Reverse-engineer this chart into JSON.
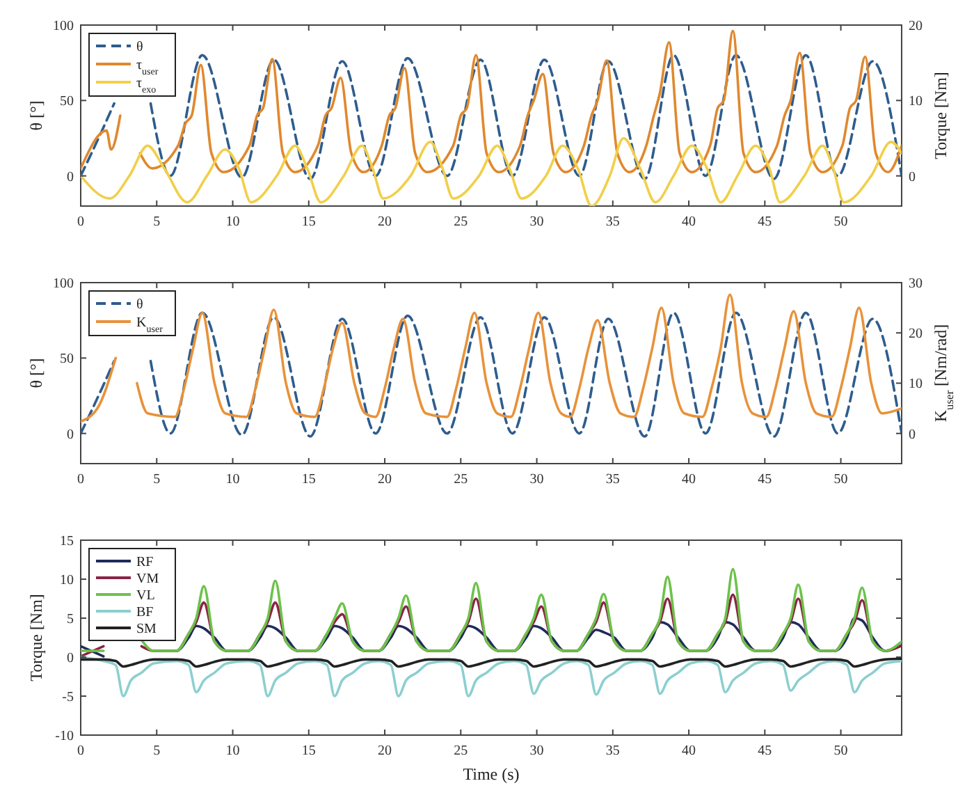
{
  "chart_data": [
    {
      "type": "line",
      "ylabel": "θ [°]",
      "y2label": "Torque [Nm]",
      "xlim": [
        0,
        54
      ],
      "xticks": [
        0,
        5,
        10,
        15,
        20,
        25,
        30,
        35,
        40,
        45,
        50
      ],
      "ylim": [
        -20,
        100
      ],
      "yticks": [
        0,
        50,
        100
      ],
      "y2lim": [
        -4,
        20
      ],
      "y2ticks": [
        0,
        10,
        20
      ],
      "legend": "top left",
      "series": [
        {
          "name": "θ",
          "color": "#2e5d8e",
          "line_style": "dashed",
          "x": [
            0,
            1.4,
            2.2,
            3.5,
            4.6,
            5.9,
            8.0,
            10.6,
            12.7,
            15.1,
            17.2,
            19.4,
            21.5,
            24.1,
            26.3,
            28.4,
            30.5,
            32.8,
            34.7,
            37.1,
            39.0,
            41.1,
            43.1,
            45.6,
            47.7,
            49.8,
            52.1,
            54
          ],
          "values": [
            0,
            30,
            48,
            null,
            48,
            0,
            80,
            -1,
            77,
            -2,
            76,
            0,
            78,
            0,
            77,
            0,
            77,
            0,
            76,
            -2,
            80,
            0,
            80,
            -2,
            80,
            0,
            76,
            0
          ]
        },
        {
          "name": "τ$_{user}$",
          "color": "#e0882e",
          "axis": "y2",
          "x": [
            0,
            1.7,
            2.0,
            2.6,
            3.2,
            3.9,
            4.7,
            6.4,
            6.9,
            7.3,
            7.9,
            8.6,
            9.4,
            11.1,
            11.6,
            12.0,
            12.6,
            13.3,
            14.1,
            15.6,
            16.1,
            16.5,
            17.1,
            17.8,
            18.6,
            19.8,
            20.3,
            20.7,
            21.3,
            22.0,
            22.8,
            24.5,
            25.0,
            25.4,
            26.0,
            26.7,
            27.5,
            28.9,
            29.4,
            29.8,
            30.4,
            31.1,
            31.9,
            33.1,
            33.6,
            34.0,
            34.6,
            35.3,
            36.1,
            37.2,
            37.7,
            38.1,
            38.7,
            39.4,
            40.2,
            41.4,
            41.9,
            42.3,
            42.9,
            43.6,
            44.4,
            45.8,
            46.3,
            46.7,
            47.3,
            48.0,
            48.8,
            50.1,
            50.6,
            51.0,
            51.6,
            52.3,
            53.1,
            54
          ],
          "values": [
            1,
            6,
            3.5,
            8,
            null,
            3,
            1,
            4,
            7,
            8,
            14.7,
            3,
            0.5,
            4,
            8,
            9,
            15.5,
            3,
            0.5,
            4,
            8,
            9,
            13,
            3,
            0.5,
            4,
            8,
            9,
            14.3,
            3,
            0.5,
            4,
            8,
            9,
            16,
            3,
            0.5,
            4,
            8,
            10,
            13.5,
            3,
            0.5,
            4,
            8,
            10,
            15.3,
            3,
            0.5,
            4,
            8,
            11,
            17.7,
            3,
            0.5,
            4,
            9,
            10,
            19.2,
            3,
            0.5,
            4,
            8,
            10,
            16.3,
            3,
            0.5,
            4,
            9,
            10,
            15.8,
            3,
            0.5,
            4
          ]
        },
        {
          "name": "τ$_{exo}$",
          "color": "#f2cf4a",
          "axis": "y2",
          "x": [
            0,
            1.9,
            3.2,
            4.4,
            5.5,
            7.0,
            8.3,
            9.5,
            10.4,
            11.2,
            12.9,
            14.1,
            14.9,
            15.8,
            17.3,
            18.5,
            19.2,
            19.9,
            21.7,
            23.0,
            23.8,
            24.5,
            26.2,
            27.4,
            28.2,
            29.0,
            30.6,
            31.7,
            32.7,
            33.6,
            34.8,
            35.7,
            36.8,
            37.8,
            39.0,
            40.2,
            41.2,
            42.1,
            43.2,
            44.4,
            45.3,
            46.0,
            47.6,
            48.8,
            49.5,
            50.2,
            52.0,
            53.3,
            54
          ],
          "values": [
            0,
            -3,
            0,
            4,
            1,
            -3.5,
            0,
            3.5,
            1,
            -3.5,
            0,
            4,
            1,
            -3.5,
            0,
            4,
            1,
            -3,
            0,
            4.5,
            1,
            -3,
            0,
            4,
            1,
            -3,
            0,
            4,
            1,
            -4,
            0,
            5,
            1,
            -3.5,
            0,
            4,
            1,
            -3.5,
            0,
            4,
            1,
            -3.5,
            0,
            4,
            1,
            -3.5,
            0,
            4.5,
            3
          ]
        }
      ]
    },
    {
      "type": "line",
      "ylabel": "θ [°]",
      "y2label": "K$_{user}$ [Nm/rad]",
      "xlim": [
        0,
        54
      ],
      "xticks": [
        0,
        5,
        10,
        15,
        20,
        25,
        30,
        35,
        40,
        45,
        50
      ],
      "ylim": [
        -20,
        100
      ],
      "yticks": [
        0,
        50,
        100
      ],
      "y2lim": [
        -6,
        30
      ],
      "y2ticks": [
        0,
        10,
        20,
        30
      ],
      "legend": "top left",
      "series": [
        {
          "name": "θ",
          "color": "#2e5d8e",
          "line_style": "dashed",
          "x": [
            0,
            1.4,
            2.2,
            3.5,
            4.6,
            5.9,
            8.0,
            10.6,
            12.7,
            15.1,
            17.2,
            19.4,
            21.5,
            24.1,
            26.3,
            28.4,
            30.5,
            32.8,
            34.7,
            37.1,
            39.0,
            41.1,
            43.1,
            45.6,
            47.7,
            49.8,
            52.1,
            54
          ],
          "values": [
            0,
            30,
            48,
            null,
            48,
            0,
            80,
            -1,
            77,
            -2,
            76,
            0,
            78,
            0,
            77,
            0,
            77,
            0,
            76,
            -2,
            80,
            0,
            80,
            -2,
            80,
            0,
            76,
            0
          ]
        },
        {
          "name": "K$_{user}$",
          "color": "#e8923a",
          "axis": "y2",
          "x": [
            0,
            1.1,
            2.3,
            2.9,
            3.7,
            4.4,
            6.2,
            6.8,
            7.4,
            8.0,
            8.8,
            9.5,
            10.9,
            11.5,
            12.1,
            12.7,
            13.5,
            14.2,
            15.4,
            16.0,
            16.6,
            17.2,
            18.0,
            18.7,
            19.4,
            20.0,
            20.6,
            21.2,
            22.0,
            22.7,
            24.1,
            24.7,
            25.3,
            25.9,
            26.7,
            27.4,
            28.3,
            28.9,
            29.5,
            30.1,
            30.9,
            31.6,
            32.2,
            32.8,
            33.4,
            34.0,
            34.8,
            35.5,
            36.4,
            37.0,
            37.6,
            38.2,
            39.0,
            39.7,
            40.9,
            41.5,
            42.1,
            42.7,
            43.5,
            44.2,
            45.1,
            45.7,
            46.3,
            46.9,
            47.7,
            48.4,
            49.4,
            50.0,
            50.6,
            51.2,
            52.0,
            52.7,
            54
          ],
          "values": [
            2.4,
            5,
            15,
            null,
            10,
            4,
            3.3,
            9,
            17,
            24,
            10,
            4,
            3.3,
            9,
            17,
            24.6,
            10,
            4,
            3.3,
            9,
            17,
            22,
            10,
            4,
            3.3,
            9,
            17,
            22.8,
            10,
            4,
            3.3,
            9,
            17,
            24,
            10,
            4,
            3.3,
            9,
            17,
            24,
            10,
            4,
            3.3,
            9,
            17,
            22.5,
            10,
            4,
            3.3,
            9,
            17,
            25,
            10,
            4,
            3.3,
            9,
            17,
            27.6,
            10,
            4,
            3.3,
            9,
            17,
            24.3,
            10,
            4,
            3.3,
            9,
            17,
            25,
            10,
            4,
            5
          ]
        }
      ]
    },
    {
      "type": "line",
      "xlabel": "Time (s)",
      "ylabel": "Torque [Nm]",
      "xlim": [
        0,
        54
      ],
      "xticks": [
        0,
        5,
        10,
        15,
        20,
        25,
        30,
        35,
        40,
        45,
        50
      ],
      "ylim": [
        -10,
        15
      ],
      "yticks": [
        -10,
        -5,
        0,
        5,
        10,
        15
      ],
      "legend": "top left",
      "x": [
        0,
        1.5,
        2.3,
        2.8,
        3.3,
        4.0,
        4.8,
        6.3,
        7.1,
        7.6,
        8.1,
        8.8,
        9.6,
        11.0,
        11.8,
        12.3,
        12.8,
        13.5,
        14.3,
        15.4,
        16.2,
        16.7,
        17.2,
        17.9,
        18.7,
        19.6,
        20.4,
        20.9,
        21.4,
        22.1,
        22.9,
        24.2,
        25.0,
        25.5,
        26.0,
        26.7,
        27.5,
        28.5,
        29.3,
        29.8,
        30.3,
        31.0,
        31.8,
        32.6,
        33.4,
        33.9,
        34.4,
        35.1,
        35.9,
        36.8,
        37.6,
        38.1,
        38.6,
        39.3,
        40.1,
        41.1,
        41.9,
        42.4,
        42.9,
        43.6,
        44.4,
        45.4,
        46.2,
        46.7,
        47.2,
        47.9,
        48.7,
        49.6,
        50.4,
        50.9,
        51.4,
        52.1,
        52.9,
        54
      ],
      "series": [
        {
          "name": "RF",
          "color": "#1f2a5c",
          "values": [
            1.4,
            0.1,
            null,
            null,
            null,
            null,
            0.8,
            0.8,
            2.5,
            4,
            3.7,
            2.5,
            0.8,
            0.8,
            2.5,
            4,
            3.7,
            2.5,
            0.8,
            0.8,
            2.5,
            4,
            3.7,
            2.5,
            0.8,
            0.8,
            2.5,
            4,
            3.7,
            2.5,
            0.8,
            0.8,
            2.5,
            4,
            3.7,
            2.5,
            0.8,
            0.8,
            2.5,
            4,
            3.7,
            2.5,
            0.8,
            0.8,
            2.5,
            3.5,
            3.2,
            2.5,
            0.8,
            0.8,
            2.5,
            4.5,
            4.2,
            2.5,
            0.8,
            0.8,
            2.5,
            4.5,
            4.2,
            2.5,
            0.8,
            0.8,
            2.5,
            4.5,
            4.2,
            2.5,
            0.8,
            0.8,
            2.5,
            5,
            4.7,
            2.5,
            0.8,
            1.5
          ]
        },
        {
          "name": "VM",
          "color": "#8b2445",
          "values": [
            0.1,
            1.4,
            null,
            null,
            null,
            1.4,
            0.8,
            0.8,
            3,
            4.5,
            7,
            2,
            0.8,
            0.8,
            3,
            4.5,
            7,
            2,
            0.8,
            0.8,
            3,
            4.5,
            5.5,
            2,
            0.8,
            0.8,
            3,
            4.5,
            6.5,
            2,
            0.8,
            0.8,
            3,
            4.5,
            7.5,
            2,
            0.8,
            0.8,
            3,
            4.5,
            6.5,
            2,
            0.8,
            0.8,
            3,
            4.5,
            7,
            2,
            0.8,
            0.8,
            3,
            4.5,
            7.5,
            2,
            0.8,
            0.8,
            3,
            4.5,
            8,
            2,
            0.8,
            0.8,
            3,
            4.5,
            7.5,
            2,
            0.8,
            0.8,
            3,
            4.5,
            7.3,
            2,
            0.8,
            1.5
          ]
        },
        {
          "name": "VL",
          "color": "#6cc24a",
          "values": [
            0.8,
            0.8,
            null,
            null,
            null,
            2.2,
            0.8,
            0.8,
            3,
            5,
            9.1,
            2,
            0.8,
            0.8,
            3,
            5,
            9.8,
            2,
            0.8,
            0.8,
            3,
            5,
            6.9,
            2,
            0.8,
            0.8,
            3,
            5,
            7.9,
            2,
            0.8,
            0.8,
            3,
            5,
            9.5,
            2,
            0.8,
            0.8,
            3,
            5,
            8,
            2,
            0.8,
            0.8,
            3,
            5,
            8.1,
            2,
            0.8,
            0.8,
            3,
            5,
            10.3,
            2,
            0.8,
            0.8,
            3,
            5,
            11.3,
            2,
            0.8,
            0.8,
            3,
            5,
            9.3,
            2,
            0.8,
            0.8,
            3,
            5,
            8.9,
            2,
            0.8,
            2
          ]
        },
        {
          "name": "BF",
          "color": "#8ccfd0",
          "values": [
            0,
            -0.5,
            -1,
            -5,
            -3,
            -2,
            -0.8,
            -0.5,
            -1,
            -4.5,
            -3,
            -2,
            -0.8,
            -0.5,
            -1,
            -5,
            -3,
            -2,
            -0.8,
            -0.5,
            -1,
            -5,
            -3,
            -2,
            -0.8,
            -0.5,
            -1,
            -5,
            -3,
            -2,
            -0.8,
            -0.5,
            -1,
            -5,
            -3,
            -2,
            -0.8,
            -0.5,
            -1,
            -4.7,
            -3,
            -2,
            -0.8,
            -0.5,
            -1,
            -4.8,
            -3,
            -2,
            -0.8,
            -0.5,
            -1,
            -4.7,
            -3,
            -2,
            -0.8,
            -0.5,
            -1,
            -4.5,
            -3,
            -2,
            -0.8,
            -0.5,
            -1,
            -4.3,
            -3,
            -2,
            -0.8,
            -0.5,
            -1,
            -4.5,
            -3,
            -2,
            -0.8,
            -0.5
          ]
        },
        {
          "name": "SM",
          "color": "#222222",
          "values": [
            -0.3,
            -0.3,
            -0.5,
            -1.2,
            -1,
            -0.6,
            -0.3,
            -0.3,
            -0.5,
            -1.2,
            -1,
            -0.6,
            -0.3,
            -0.3,
            -0.5,
            -1.2,
            -1,
            -0.6,
            -0.3,
            -0.3,
            -0.5,
            -1.2,
            -1,
            -0.6,
            -0.3,
            -0.3,
            -0.5,
            -1.2,
            -1,
            -0.6,
            -0.3,
            -0.3,
            -0.5,
            -1.2,
            -1,
            -0.6,
            -0.3,
            -0.3,
            -0.5,
            -1.2,
            -1,
            -0.6,
            -0.3,
            -0.3,
            -0.5,
            -1.2,
            -1,
            -0.6,
            -0.3,
            -0.3,
            -0.5,
            -1.2,
            -1,
            -0.6,
            -0.3,
            -0.3,
            -0.5,
            -1.2,
            -1,
            -0.6,
            -0.3,
            -0.3,
            -0.5,
            -1.2,
            -1,
            -0.6,
            -0.3,
            -0.3,
            -0.5,
            -1.2,
            -1,
            -0.6,
            -0.3,
            -0.2
          ]
        }
      ]
    }
  ]
}
